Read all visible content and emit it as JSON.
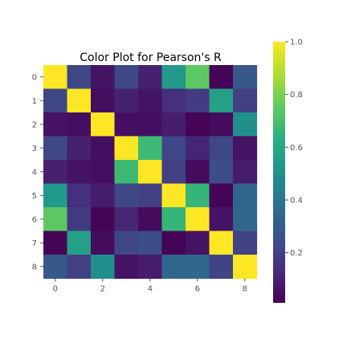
{
  "chart_data": {
    "type": "heatmap",
    "title": "Color Plot for Pearson's R",
    "colormap": "viridis",
    "x_ticks": [
      "0",
      "2",
      "4",
      "6",
      "8"
    ],
    "y_ticks": [
      "0",
      "1",
      "2",
      "3",
      "4",
      "5",
      "6",
      "7",
      "8"
    ],
    "colorbar": {
      "range": [
        0.01,
        1.0
      ],
      "ticks": [
        "0.2",
        "0.4",
        "0.6",
        "0.8",
        "1.0"
      ],
      "tick_values": [
        0.2,
        0.4,
        0.6,
        0.8,
        1.0
      ]
    },
    "values": [
      [
        1.0,
        0.22,
        0.06,
        0.22,
        0.1,
        0.54,
        0.75,
        0.02,
        0.28
      ],
      [
        0.22,
        1.0,
        0.05,
        0.1,
        0.06,
        0.14,
        0.18,
        0.57,
        0.2
      ],
      [
        0.06,
        0.05,
        1.0,
        0.05,
        0.05,
        0.09,
        0.02,
        0.04,
        0.5
      ],
      [
        0.22,
        0.1,
        0.05,
        1.0,
        0.68,
        0.22,
        0.11,
        0.22,
        0.06
      ],
      [
        0.1,
        0.06,
        0.05,
        0.68,
        1.0,
        0.2,
        0.04,
        0.24,
        0.09
      ],
      [
        0.54,
        0.14,
        0.09,
        0.22,
        0.2,
        1.0,
        0.66,
        0.02,
        0.34
      ],
      [
        0.75,
        0.18,
        0.02,
        0.11,
        0.04,
        0.66,
        1.0,
        0.06,
        0.34
      ],
      [
        0.02,
        0.57,
        0.04,
        0.22,
        0.24,
        0.02,
        0.06,
        1.0,
        0.21
      ],
      [
        0.28,
        0.2,
        0.5,
        0.06,
        0.09,
        0.34,
        0.34,
        0.21,
        1.0
      ]
    ]
  }
}
